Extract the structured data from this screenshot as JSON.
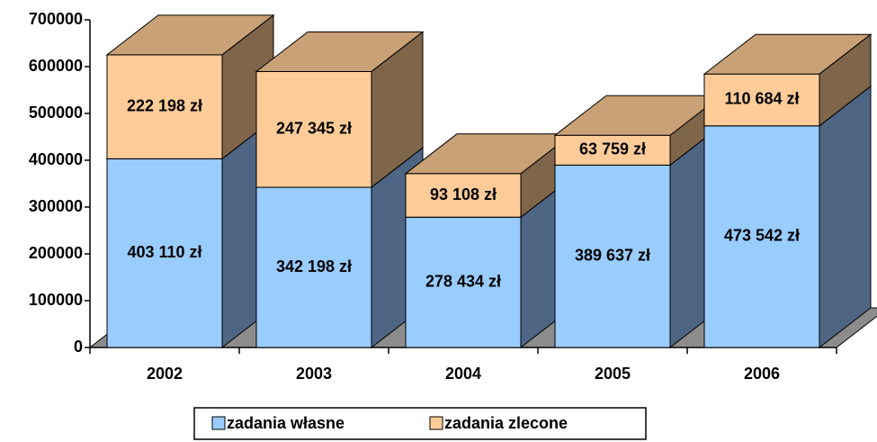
{
  "chart_data": {
    "type": "bar3d_stacked",
    "categories": [
      "2002",
      "2003",
      "2004",
      "2005",
      "2006"
    ],
    "series": [
      {
        "name": "zadania własne",
        "color": "#99ccff",
        "side_color": "#4f6584",
        "values": [
          403110,
          342198,
          278434,
          389637,
          473542
        ],
        "value_labels": [
          "403 110 zł",
          "342 198 zł",
          "278 434 zł",
          "389 637 zł",
          "473 542 zł"
        ]
      },
      {
        "name": "zadania zlecone",
        "color": "#ffcc99",
        "side_color": "#7f654a",
        "top_color": "#c9a176",
        "values": [
          222198,
          247345,
          93108,
          63759,
          110684
        ],
        "value_labels": [
          "222 198 zł",
          "247 345 zł",
          "93 108 zł",
          "63 759 zł",
          "110 684 zł"
        ]
      }
    ],
    "ylim": [
      0,
      700000
    ],
    "yticks": [
      0,
      100000,
      200000,
      300000,
      400000,
      500000,
      600000,
      700000
    ]
  }
}
